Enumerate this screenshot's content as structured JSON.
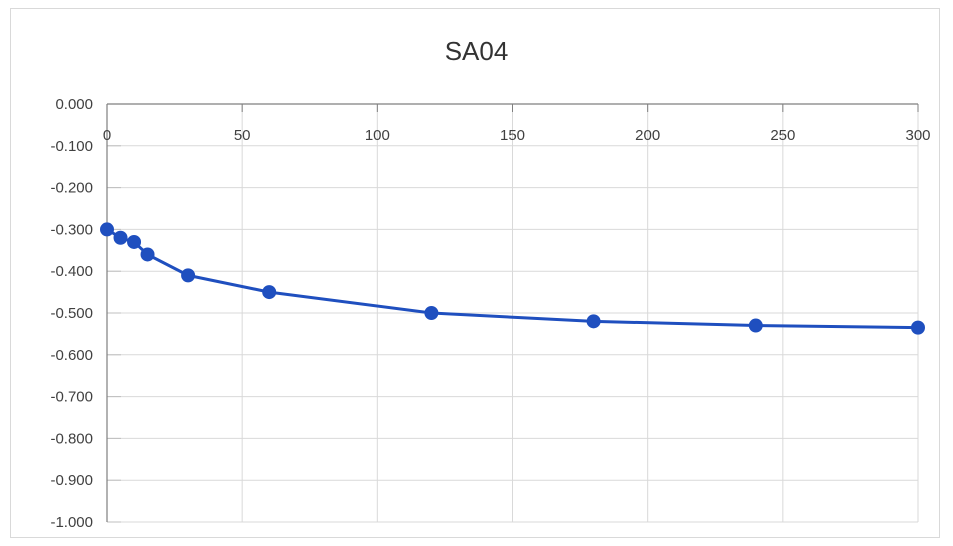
{
  "chart_data": {
    "type": "line",
    "title": "SA04",
    "xlabel": "",
    "ylabel": "",
    "xlim": [
      0,
      300
    ],
    "ylim": [
      -1.0,
      0.0
    ],
    "x_ticks": [
      0,
      50,
      100,
      150,
      200,
      250,
      300
    ],
    "x_tick_labels": [
      "0",
      "50",
      "100",
      "150",
      "200",
      "250",
      "300"
    ],
    "y_ticks": [
      0.0,
      -0.1,
      -0.2,
      -0.3,
      -0.4,
      -0.5,
      -0.6,
      -0.7,
      -0.8,
      -0.9,
      -1.0
    ],
    "y_tick_labels": [
      "0.000",
      "-0.100",
      "-0.200",
      "-0.300",
      "-0.400",
      "-0.500",
      "-0.600",
      "-0.700",
      "-0.800",
      "-0.900",
      "-1.000"
    ],
    "x_axis_position": "top",
    "grid": true,
    "legend": "none",
    "series": [
      {
        "color": "#1f4fbf",
        "x": [
          0,
          5,
          10,
          15,
          30,
          60,
          120,
          180,
          240,
          300
        ],
        "y": [
          -0.3,
          -0.32,
          -0.33,
          -0.36,
          -0.41,
          -0.45,
          -0.5,
          -0.52,
          -0.53,
          -0.535
        ]
      }
    ]
  }
}
